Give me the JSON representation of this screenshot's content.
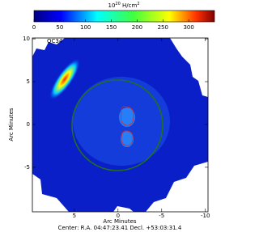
{
  "chart_data": {
    "type": "image",
    "colorbar": {
      "label": {
        "base": "10",
        "exponent": "20",
        "unit": " H/cm",
        "unit_exponent": "2"
      },
      "clim": [
        0,
        350
      ],
      "ticks": [
        0,
        50,
        100,
        150,
        200,
        250,
        300
      ]
    },
    "annotation": "OC34",
    "xlabel": "Arc Minutes",
    "ylabel": "Arc Minutes",
    "xlim": [
      9.8,
      -10.3
    ],
    "xticks": [
      5,
      0,
      -5,
      -10
    ],
    "ylim": [
      -10.2,
      10.1
    ],
    "yticks": [
      10,
      5,
      0,
      -5
    ],
    "footer": "Center: R.A. 04:47:23.41  Decl. +53:03:31.4"
  }
}
